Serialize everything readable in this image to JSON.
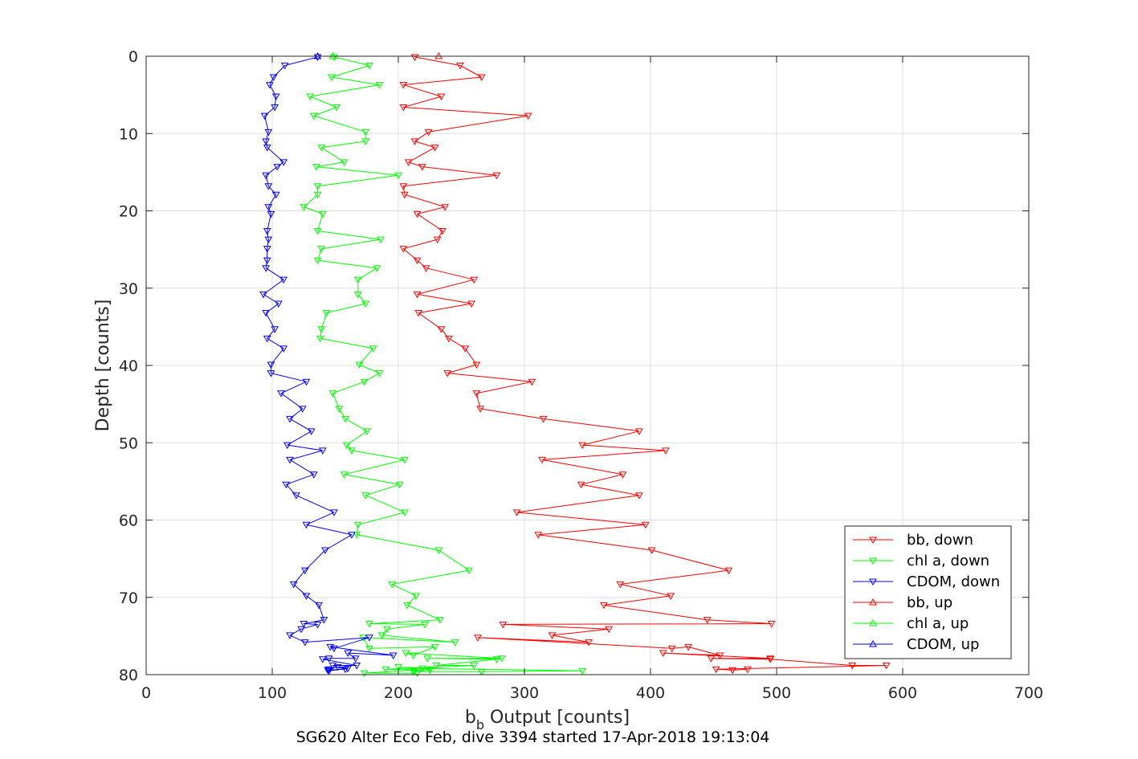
{
  "chart_data": {
    "type": "line",
    "xlabel": "b_b Output [counts]",
    "xlabel_main": "b",
    "xlabel_sub": "b",
    "xlabel_rest": " Output [counts]",
    "ylabel": "Depth [counts]",
    "caption": "SG620 Alter Eco Feb, dive 3394 started 17-Apr-2018 19:13:04",
    "xlim": [
      0,
      700
    ],
    "ylim": [
      0,
      80
    ],
    "y_reversed": true,
    "grid": true,
    "legend_position": "bottom-right",
    "x_ticks": [
      "0",
      "100",
      "200",
      "300",
      "400",
      "500",
      "600",
      "700"
    ],
    "y_ticks": [
      "0",
      "10",
      "20",
      "30",
      "40",
      "50",
      "60",
      "70",
      "80"
    ],
    "series": [
      {
        "name": "bb, down",
        "color": "#ff0000",
        "marker": "triangle-down",
        "x": [
          213,
          249,
          266,
          204,
          234,
          204,
          303,
          224,
          213,
          229,
          208,
          219,
          278,
          204,
          205,
          237,
          215,
          235,
          231,
          204,
          215,
          222,
          260,
          215,
          258,
          216,
          234,
          240,
          253,
          262,
          239,
          306,
          262,
          265,
          315,
          391,
          346,
          412,
          314,
          378,
          345,
          391,
          294,
          396,
          311,
          401,
          462,
          376,
          416,
          363,
          445,
          496,
          283,
          367,
          322,
          351,
          263,
          417,
          430,
          455,
          410,
          495,
          448,
          495,
          560,
          587,
          452,
          465,
          477
        ],
        "y": [
          0.1,
          1.2,
          2.7,
          3.7,
          5.2,
          6.6,
          7.7,
          9.8,
          11.0,
          11.8,
          13.7,
          14.3,
          15.4,
          16.8,
          17.9,
          19.5,
          20.4,
          22.6,
          23.7,
          24.9,
          26.4,
          27.4,
          28.9,
          30.8,
          32.0,
          33.2,
          35.3,
          36.5,
          37.8,
          39.9,
          41.0,
          42.1,
          43.6,
          45.6,
          46.9,
          48.5,
          50.3,
          51.0,
          52.2,
          54.1,
          55.4,
          56.8,
          59.0,
          60.6,
          61.9,
          63.9,
          66.5,
          68.3,
          69.8,
          71.0,
          72.9,
          73.4,
          73.5,
          74.1,
          74.9,
          75.8,
          75.2,
          76.6,
          76.4,
          77.5,
          77.2,
          77.9,
          77.9,
          78.0,
          78.8,
          78.8,
          79.3,
          79.4,
          79.3
        ]
      },
      {
        "name": "chl a, down",
        "color": "#00ff00",
        "marker": "triangle-down",
        "x": [
          149,
          177,
          147,
          185,
          130,
          151,
          133,
          174,
          174,
          139,
          157,
          135,
          200,
          136,
          136,
          125,
          140,
          136,
          186,
          139,
          136,
          183,
          168,
          168,
          174,
          143,
          139,
          138,
          180,
          169,
          185,
          173,
          148,
          153,
          158,
          175,
          159,
          163,
          205,
          157,
          201,
          174,
          205,
          168,
          167,
          232,
          256,
          195,
          214,
          207,
          233,
          177,
          221,
          191,
          187,
          245,
          172,
          177,
          229,
          212,
          206,
          282,
          223,
          278,
          230,
          260,
          190,
          225,
          225,
          200,
          219,
          346,
          266,
          212,
          212,
          173,
          215
        ],
        "y": [
          0.1,
          1.2,
          2.7,
          3.7,
          5.2,
          6.6,
          7.7,
          9.8,
          11.0,
          11.8,
          13.7,
          14.3,
          15.4,
          16.8,
          17.9,
          19.5,
          20.4,
          22.6,
          23.7,
          24.9,
          26.4,
          27.4,
          28.9,
          30.8,
          32.0,
          33.2,
          35.3,
          36.5,
          37.8,
          39.9,
          41.0,
          42.1,
          43.6,
          45.6,
          46.9,
          48.5,
          50.3,
          51.0,
          52.2,
          54.1,
          55.4,
          56.8,
          59.0,
          60.6,
          61.9,
          63.9,
          66.5,
          68.3,
          69.8,
          71.0,
          72.9,
          73.4,
          73.5,
          74.1,
          74.9,
          75.8,
          75.2,
          76.6,
          76.4,
          77.5,
          77.2,
          77.9,
          77.9,
          78.0,
          78.8,
          78.8,
          79.3,
          79.4,
          79.3,
          79.0,
          79.2,
          79.5,
          79.6,
          79.6,
          79.4,
          79.8,
          79.8
        ]
      },
      {
        "name": "CDOM, down",
        "color": "#0000ff",
        "marker": "triangle-down",
        "x": [
          136,
          110,
          101,
          98,
          103,
          102,
          94,
          97,
          95,
          96,
          109,
          104,
          95,
          97,
          103,
          97,
          99,
          96,
          97,
          96,
          96,
          95,
          109,
          93,
          105,
          95,
          102,
          96,
          109,
          99,
          99,
          127,
          107,
          124,
          114,
          131,
          112,
          140,
          114,
          133,
          111,
          119,
          149,
          127,
          163,
          142,
          126,
          117,
          127,
          137,
          141,
          125,
          136,
          123,
          114,
          126,
          177,
          149,
          146,
          196,
          160,
          166,
          145,
          140,
          167,
          148,
          158,
          144,
          145,
          152,
          160,
          145
        ],
        "y": [
          0.1,
          1.2,
          2.7,
          3.7,
          5.2,
          6.6,
          7.7,
          9.8,
          11.0,
          11.8,
          13.7,
          14.3,
          15.4,
          16.8,
          17.9,
          19.5,
          20.4,
          22.6,
          23.7,
          24.9,
          26.4,
          27.4,
          28.9,
          30.8,
          32.0,
          33.2,
          35.3,
          36.5,
          37.8,
          39.9,
          41.0,
          42.1,
          43.6,
          45.6,
          46.9,
          48.5,
          50.3,
          51.0,
          52.2,
          54.1,
          55.4,
          56.8,
          59.0,
          60.6,
          61.9,
          63.9,
          66.5,
          68.3,
          69.8,
          71.0,
          72.9,
          73.4,
          73.5,
          74.1,
          74.9,
          75.8,
          75.2,
          76.6,
          76.4,
          77.5,
          77.2,
          77.9,
          77.9,
          78.0,
          78.8,
          78.8,
          79.3,
          79.4,
          79.3,
          79.0,
          79.2,
          79.5
        ]
      },
      {
        "name": "bb, up",
        "color": "#ff0000",
        "marker": "triangle-up",
        "x": [
          232
        ],
        "y": [
          0.0
        ]
      },
      {
        "name": "chl a, up",
        "color": "#00ff00",
        "marker": "triangle-up",
        "x": [
          148
        ],
        "y": [
          0.0
        ]
      },
      {
        "name": "CDOM, up",
        "color": "#0000ff",
        "marker": "triangle-up",
        "x": [
          136
        ],
        "y": [
          0.0
        ]
      }
    ]
  }
}
